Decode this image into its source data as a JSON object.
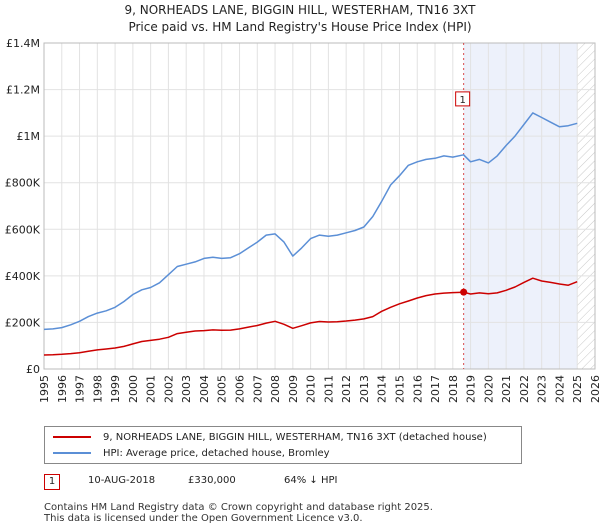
{
  "chart_data": {
    "type": "line",
    "title": "9, NORHEADS LANE, BIGGIN HILL, WESTERHAM, TN16 3XT",
    "subtitle": "Price paid vs. HM Land Registry's House Price Index (HPI)",
    "xlim": [
      1995,
      2026
    ],
    "ylim": [
      0,
      1400000
    ],
    "y_ticks": [
      {
        "value": 0,
        "label": "£0"
      },
      {
        "value": 200000,
        "label": "£200K"
      },
      {
        "value": 400000,
        "label": "£400K"
      },
      {
        "value": 600000,
        "label": "£600K"
      },
      {
        "value": 800000,
        "label": "£800K"
      },
      {
        "value": 1000000,
        "label": "£1M"
      },
      {
        "value": 1200000,
        "label": "£1.2M"
      },
      {
        "value": 1400000,
        "label": "£1.4M"
      }
    ],
    "x_ticks": [
      "1995",
      "1996",
      "1997",
      "1998",
      "1999",
      "2000",
      "2001",
      "2002",
      "2003",
      "2004",
      "2005",
      "2006",
      "2007",
      "2008",
      "2009",
      "2010",
      "2011",
      "2012",
      "2013",
      "2014",
      "2015",
      "2016",
      "2017",
      "2018",
      "2019",
      "2020",
      "2021",
      "2022",
      "2023",
      "2024",
      "2025",
      "2026"
    ],
    "shaded_region": [
      2018.61,
      2025.0
    ],
    "data_end": 2025.0,
    "series": [
      {
        "name": "9, NORHEADS LANE, BIGGIN HILL, WESTERHAM, TN16 3XT (detached house)",
        "color": "#cc0000",
        "x": [
          1995.0,
          1995.5,
          1996.0,
          1996.5,
          1997.0,
          1997.5,
          1998.0,
          1998.5,
          1999.0,
          1999.5,
          2000.0,
          2000.5,
          2001.0,
          2001.5,
          2002.0,
          2002.5,
          2003.0,
          2003.5,
          2004.0,
          2004.5,
          2005.0,
          2005.5,
          2006.0,
          2006.5,
          2007.0,
          2007.5,
          2008.0,
          2008.5,
          2009.0,
          2009.5,
          2010.0,
          2010.5,
          2011.0,
          2011.5,
          2012.0,
          2012.5,
          2013.0,
          2013.5,
          2014.0,
          2014.5,
          2015.0,
          2015.5,
          2016.0,
          2016.5,
          2017.0,
          2017.5,
          2018.0,
          2018.61,
          2019.0,
          2019.5,
          2020.0,
          2020.5,
          2021.0,
          2021.5,
          2022.0,
          2022.5,
          2023.0,
          2023.5,
          2024.0,
          2024.5,
          2025.0
        ],
        "values": [
          60000,
          61000,
          63000,
          66000,
          70000,
          76000,
          82000,
          86000,
          90000,
          97000,
          108000,
          118000,
          123000,
          128000,
          136000,
          152000,
          158000,
          163000,
          165000,
          168000,
          166000,
          167000,
          172000,
          180000,
          187000,
          197000,
          205000,
          192000,
          175000,
          186000,
          198000,
          204000,
          202000,
          203000,
          206000,
          210000,
          215000,
          225000,
          248000,
          265000,
          280000,
          292000,
          305000,
          315000,
          322000,
          326000,
          328000,
          330000,
          322000,
          327000,
          323000,
          327000,
          338000,
          352000,
          372000,
          390000,
          378000,
          372000,
          365000,
          360000,
          375000
        ]
      },
      {
        "name": "HPI: Average price, detached house, Bromley",
        "color": "#5b8fd6",
        "x": [
          1995.0,
          1995.5,
          1996.0,
          1996.5,
          1997.0,
          1997.5,
          1998.0,
          1998.5,
          1999.0,
          1999.5,
          2000.0,
          2000.5,
          2001.0,
          2001.5,
          2002.0,
          2002.5,
          2003.0,
          2003.5,
          2004.0,
          2004.5,
          2005.0,
          2005.5,
          2006.0,
          2006.5,
          2007.0,
          2007.5,
          2008.0,
          2008.5,
          2009.0,
          2009.5,
          2010.0,
          2010.5,
          2011.0,
          2011.5,
          2012.0,
          2012.5,
          2013.0,
          2013.5,
          2014.0,
          2014.5,
          2015.0,
          2015.5,
          2016.0,
          2016.5,
          2017.0,
          2017.5,
          2018.0,
          2018.61,
          2019.0,
          2019.5,
          2020.0,
          2020.5,
          2021.0,
          2021.5,
          2022.0,
          2022.5,
          2023.0,
          2023.5,
          2024.0,
          2024.5,
          2025.0
        ],
        "values": [
          170000,
          172000,
          178000,
          190000,
          205000,
          225000,
          240000,
          250000,
          265000,
          290000,
          320000,
          340000,
          350000,
          370000,
          405000,
          440000,
          450000,
          460000,
          475000,
          480000,
          475000,
          478000,
          495000,
          520000,
          545000,
          575000,
          580000,
          545000,
          485000,
          520000,
          560000,
          575000,
          570000,
          575000,
          585000,
          595000,
          610000,
          655000,
          720000,
          790000,
          830000,
          875000,
          890000,
          900000,
          905000,
          915000,
          910000,
          920000,
          890000,
          900000,
          885000,
          915000,
          960000,
          1000000,
          1050000,
          1100000,
          1080000,
          1060000,
          1040000,
          1045000,
          1055000
        ]
      }
    ],
    "annotations": [
      {
        "label": "1",
        "x": 2018.61,
        "y": 330000
      }
    ]
  },
  "legend": {
    "property_label": "9, NORHEADS LANE, BIGGIN HILL, WESTERHAM, TN16 3XT (detached house)",
    "hpi_label": "HPI: Average price, detached house, Bromley"
  },
  "sales": [
    {
      "marker": "1",
      "date": "10-AUG-2018",
      "price": "£330,000",
      "hpi_delta": "64% ↓ HPI"
    }
  ],
  "footer": {
    "line1": "Contains HM Land Registry data © Crown copyright and database right 2025.",
    "line2": "This data is licensed under the Open Government Licence v3.0."
  }
}
